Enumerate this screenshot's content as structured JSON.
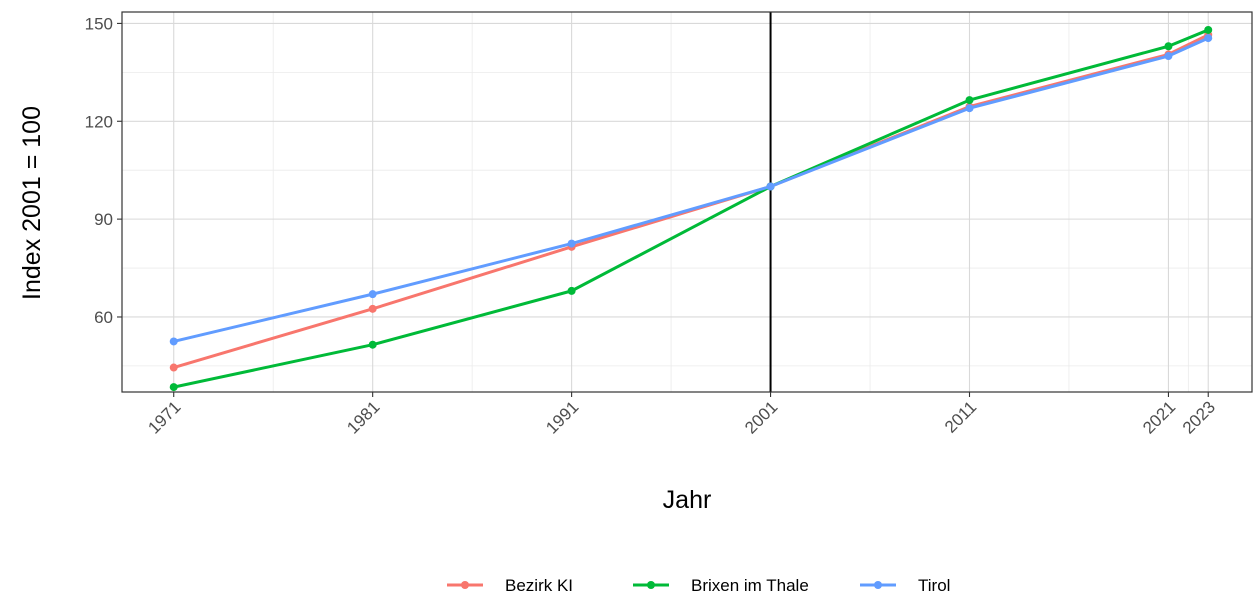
{
  "chart_data": {
    "type": "line",
    "title": "",
    "xlabel": "Jahr",
    "ylabel": "Index 2001 = 100",
    "x": [
      1971,
      1981,
      1991,
      2001,
      2011,
      2021,
      2023
    ],
    "x_ticks": [
      "1971",
      "1981",
      "1991",
      "2001",
      "2011",
      "2021",
      "2023"
    ],
    "y_ticks": [
      "60",
      "90",
      "120",
      "150"
    ],
    "xlim": [
      1968.4,
      2025.2
    ],
    "ylim": [
      37,
      153.5
    ],
    "grid": true,
    "reference_line_x": 2001,
    "legend_position": "bottom",
    "series": [
      {
        "name": "Bezirk KI",
        "color": "#F8766D",
        "values": [
          44.5,
          62.5,
          81.5,
          100,
          124.5,
          140.5,
          146.5
        ]
      },
      {
        "name": "Brixen im Thale",
        "color": "#00BA38",
        "values": [
          38.5,
          51.5,
          68,
          100,
          126.5,
          143,
          148
        ]
      },
      {
        "name": "Tirol",
        "color": "#619CFF",
        "values": [
          52.5,
          67,
          82.5,
          100,
          124,
          140,
          145.5
        ]
      }
    ]
  }
}
